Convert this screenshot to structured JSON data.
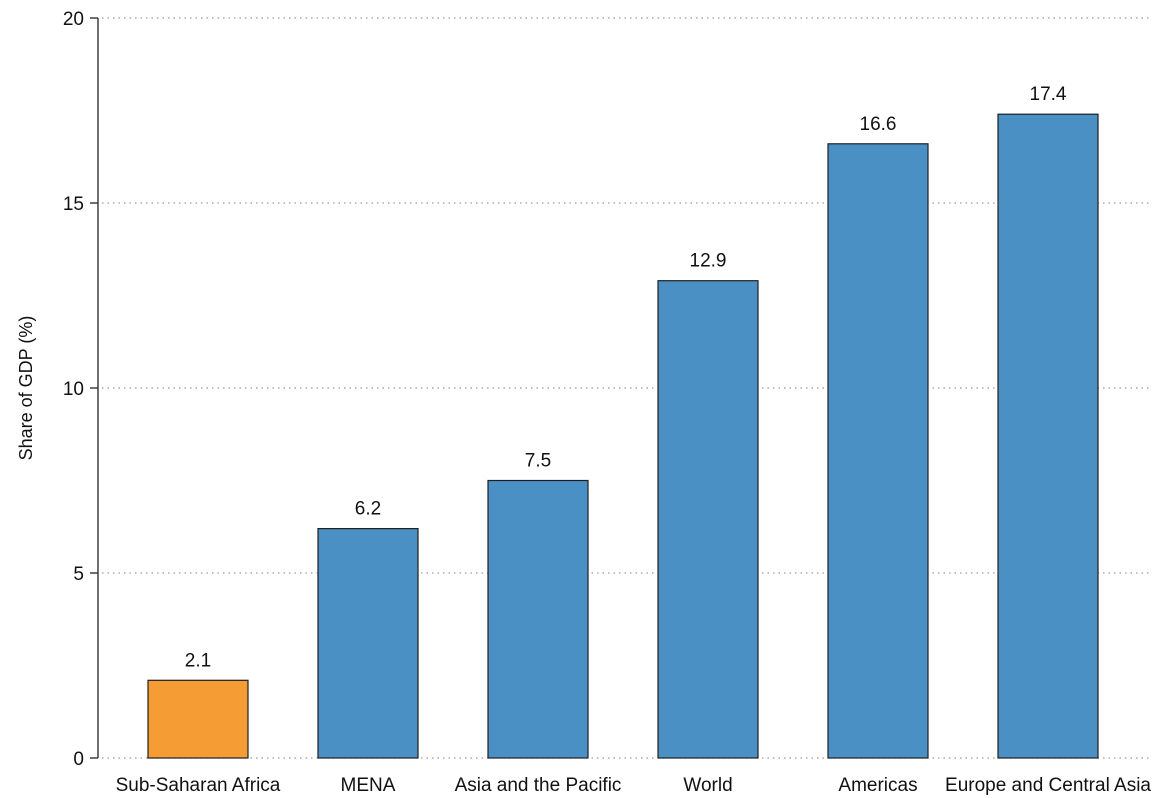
{
  "chart_data": {
    "type": "bar",
    "title": "",
    "xlabel": "",
    "ylabel": "Share of GDP (%)",
    "ylim": [
      0,
      20
    ],
    "yticks": [
      0,
      5,
      10,
      15,
      20
    ],
    "grid": true,
    "categories": [
      "Sub-Saharan Africa",
      "MENA",
      "Asia and the Pacific",
      "World",
      "Americas",
      "Europe and Central Asia"
    ],
    "values": [
      2.1,
      6.2,
      7.5,
      12.9,
      16.6,
      17.4
    ],
    "data_labels": [
      "2.1",
      "6.2",
      "7.5",
      "12.9",
      "16.6",
      "17.4"
    ],
    "colors": [
      "#f59c34",
      "#4a90c4",
      "#4a90c4",
      "#4a90c4",
      "#4a90c4",
      "#4a90c4"
    ]
  }
}
